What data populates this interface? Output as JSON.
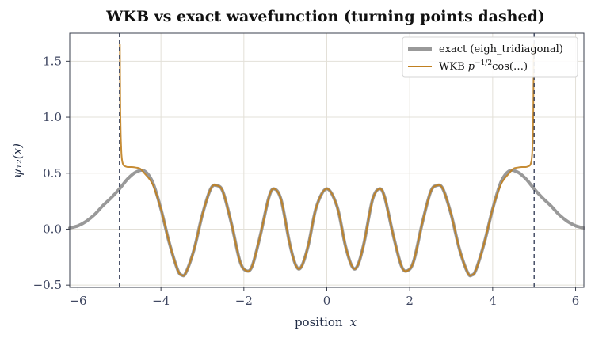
{
  "chart_data": {
    "type": "line",
    "title": "WKB vs exact wavefunction (turning points dashed)",
    "xlabel": "position",
    "xlabel_var": "x",
    "ylabel": "ψ₁₂(x)",
    "xlim": [
      -6.2,
      6.2
    ],
    "ylim": [
      -0.52,
      1.75
    ],
    "xticks": [
      -6,
      -4,
      -2,
      0,
      2,
      4,
      6
    ],
    "yticks": [
      -0.5,
      0.0,
      0.5,
      1.0,
      1.5
    ],
    "xtick_labels": [
      "−6",
      "−4",
      "−2",
      "0",
      "2",
      "4",
      "6"
    ],
    "ytick_labels": [
      "−0.5",
      "0.0",
      "0.5",
      "1.0",
      "1.5"
    ],
    "grid": true,
    "legend_position": "top-right",
    "turning_points": [
      -5.0,
      5.0
    ],
    "series": [
      {
        "name": "exact  (eigh_tridiagonal)",
        "color": "#999999",
        "x": [
          -6.2,
          -6.0,
          -5.8,
          -5.6,
          -5.4,
          -5.2,
          -5.0,
          -4.8,
          -4.6,
          -4.4,
          -4.2,
          -4.0,
          -3.8,
          -3.6,
          -3.5,
          -3.4,
          -3.2,
          -3.0,
          -2.8,
          -2.65,
          -2.5,
          -2.3,
          -2.1,
          -1.95,
          -1.8,
          -1.6,
          -1.4,
          -1.27,
          -1.1,
          -0.9,
          -0.75,
          -0.62,
          -0.45,
          -0.25,
          0.0,
          0.25,
          0.45,
          0.62,
          0.75,
          0.9,
          1.1,
          1.27,
          1.4,
          1.6,
          1.8,
          1.95,
          2.1,
          2.3,
          2.5,
          2.65,
          2.8,
          3.0,
          3.2,
          3.4,
          3.5,
          3.6,
          3.8,
          4.0,
          4.2,
          4.4,
          4.6,
          4.8,
          5.0,
          5.2,
          5.4,
          5.6,
          5.8,
          6.0,
          6.2
        ],
        "y": [
          0.01,
          0.03,
          0.07,
          0.13,
          0.21,
          0.28,
          0.36,
          0.45,
          0.51,
          0.52,
          0.42,
          0.18,
          -0.12,
          -0.36,
          -0.41,
          -0.39,
          -0.18,
          0.13,
          0.36,
          0.39,
          0.33,
          0.05,
          -0.28,
          -0.37,
          -0.33,
          -0.05,
          0.28,
          0.36,
          0.26,
          -0.12,
          -0.32,
          -0.34,
          -0.15,
          0.2,
          0.36,
          0.2,
          -0.15,
          -0.34,
          -0.32,
          -0.12,
          0.26,
          0.36,
          0.28,
          -0.05,
          -0.33,
          -0.37,
          -0.28,
          0.05,
          0.33,
          0.39,
          0.36,
          0.13,
          -0.18,
          -0.39,
          -0.41,
          -0.36,
          -0.12,
          0.18,
          0.42,
          0.52,
          0.51,
          0.45,
          0.36,
          0.28,
          0.21,
          0.13,
          0.07,
          0.03,
          0.01
        ]
      },
      {
        "name": "WKB  p^{-1/2} cos(...)",
        "color": "#c07f1f",
        "x": [
          -4.99,
          -4.985,
          -4.98,
          -4.97,
          -4.96,
          -4.95,
          -4.93,
          -4.9,
          -4.85,
          -4.8,
          -4.7,
          -4.6,
          -4.5,
          -4.4,
          -4.2,
          -4.0,
          -3.8,
          -3.6,
          -3.5,
          -3.4,
          -3.2,
          -3.0,
          -2.8,
          -2.65,
          -2.5,
          -2.3,
          -2.1,
          -1.95,
          -1.8,
          -1.6,
          -1.4,
          -1.27,
          -1.1,
          -0.9,
          -0.75,
          -0.62,
          -0.45,
          -0.25,
          0.0,
          0.25,
          0.45,
          0.62,
          0.75,
          0.9,
          1.1,
          1.27,
          1.4,
          1.6,
          1.8,
          1.95,
          2.1,
          2.3,
          2.5,
          2.65,
          2.8,
          3.0,
          3.2,
          3.4,
          3.5,
          3.6,
          3.8,
          4.0,
          4.2,
          4.4,
          4.5,
          4.6,
          4.7,
          4.8,
          4.85,
          4.9,
          4.93,
          4.95,
          4.96,
          4.97,
          4.98,
          4.985,
          4.99
        ],
        "y": [
          1.65,
          1.3,
          1.05,
          0.85,
          0.74,
          0.66,
          0.6,
          0.57,
          0.56,
          0.555,
          0.555,
          0.55,
          0.54,
          0.5,
          0.4,
          0.18,
          -0.12,
          -0.36,
          -0.41,
          -0.39,
          -0.18,
          0.13,
          0.36,
          0.39,
          0.33,
          0.05,
          -0.28,
          -0.37,
          -0.33,
          -0.05,
          0.28,
          0.36,
          0.26,
          -0.12,
          -0.32,
          -0.34,
          -0.15,
          0.2,
          0.36,
          0.2,
          -0.15,
          -0.34,
          -0.32,
          -0.12,
          0.26,
          0.36,
          0.28,
          -0.05,
          -0.33,
          -0.37,
          -0.28,
          0.05,
          0.33,
          0.39,
          0.36,
          0.13,
          -0.18,
          -0.39,
          -0.41,
          -0.36,
          -0.12,
          0.18,
          0.4,
          0.5,
          0.54,
          0.55,
          0.555,
          0.555,
          0.56,
          0.57,
          0.6,
          0.66,
          0.74,
          0.85,
          1.05,
          1.3,
          1.65
        ]
      }
    ]
  }
}
